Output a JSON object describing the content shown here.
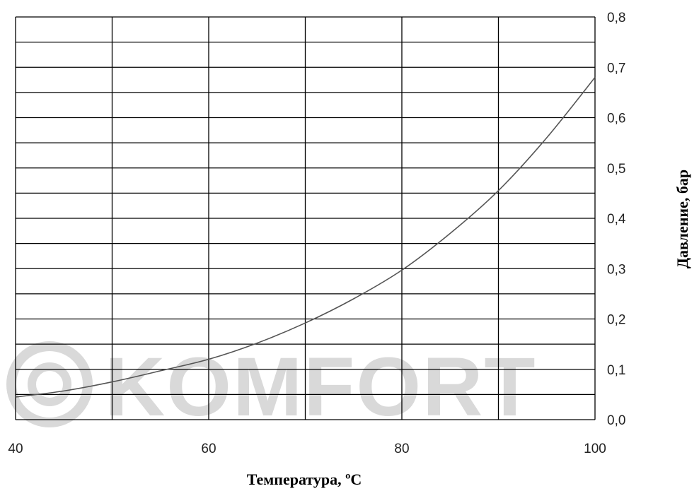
{
  "watermark": {
    "text": "KOMFORT",
    "color": "#d9d9d9"
  },
  "chart_data": {
    "type": "line",
    "xlabel": "Температура, ºC",
    "ylabel": "Давление, бар",
    "xlim": [
      40,
      100
    ],
    "ylim": [
      0,
      0.8
    ],
    "x_ticks": [
      "40",
      "60",
      "80",
      "100"
    ],
    "y_ticks": [
      "0,0",
      "0,1",
      "0,2",
      "0,3",
      "0,4",
      "0,5",
      "0,6",
      "0,7",
      "0,8"
    ],
    "grid": true,
    "y_axis_side": "right",
    "line_color": "#555555",
    "series": [
      {
        "x": [
          40,
          45,
          50,
          55,
          60,
          65,
          70,
          75,
          80,
          85,
          90,
          95,
          100
        ],
        "values": [
          0.045,
          0.057,
          0.075,
          0.097,
          0.12,
          0.152,
          0.192,
          0.24,
          0.297,
          0.37,
          0.455,
          0.56,
          0.68
        ]
      }
    ]
  }
}
